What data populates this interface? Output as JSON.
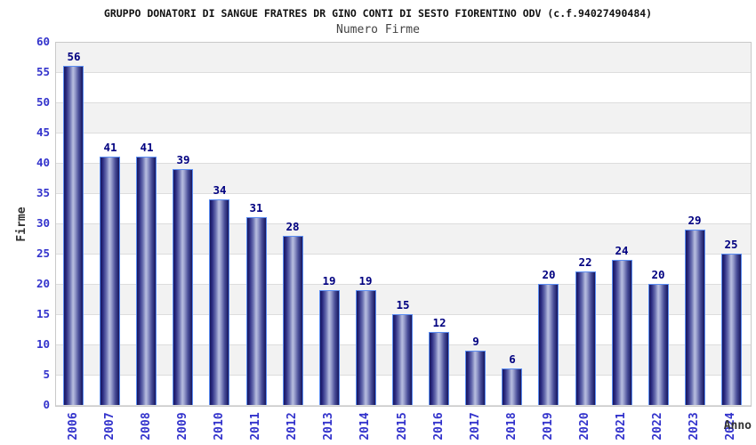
{
  "header": {
    "title": "GRUPPO DONATORI DI SANGUE FRATRES DR GINO CONTI DI SESTO FIORENTINO ODV (c.f.94027490484)",
    "subtitle": "Numero Firme"
  },
  "chart_data": {
    "type": "bar",
    "title": "GRUPPO DONATORI DI SANGUE FRATRES DR GINO CONTI DI SESTO FIORENTINO ODV (c.f.94027490484)",
    "subtitle": "Numero Firme",
    "xlabel": "Anno",
    "ylabel": "Firme",
    "categories": [
      "2006",
      "2007",
      "2008",
      "2009",
      "2010",
      "2011",
      "2012",
      "2013",
      "2014",
      "2015",
      "2016",
      "2017",
      "2018",
      "2019",
      "2020",
      "2021",
      "2022",
      "2023",
      "2024"
    ],
    "values": [
      56,
      41,
      41,
      39,
      34,
      31,
      28,
      19,
      19,
      15,
      12,
      9,
      6,
      20,
      22,
      24,
      20,
      29,
      25
    ],
    "ylim": [
      0,
      60
    ],
    "ytick_step": 5,
    "grid": "horizontal gridlines every 5 units with alternating gray/white bands",
    "legend": "none",
    "value_labels": "above each bar"
  },
  "colors": {
    "bar_dark": "#16165e",
    "bar_light": "#b8bedf",
    "bar_border": "#5b8df2",
    "axis_tick_text": "#3333cc",
    "value_label_text": "#000080",
    "band_gray": "#f2f2f2",
    "band_white": "#ffffff",
    "gridline": "#dddddd",
    "plot_border": "#c9c9c9",
    "title_text": "#111111",
    "subtitle_text": "#444444",
    "axis_title_text": "#333333"
  }
}
